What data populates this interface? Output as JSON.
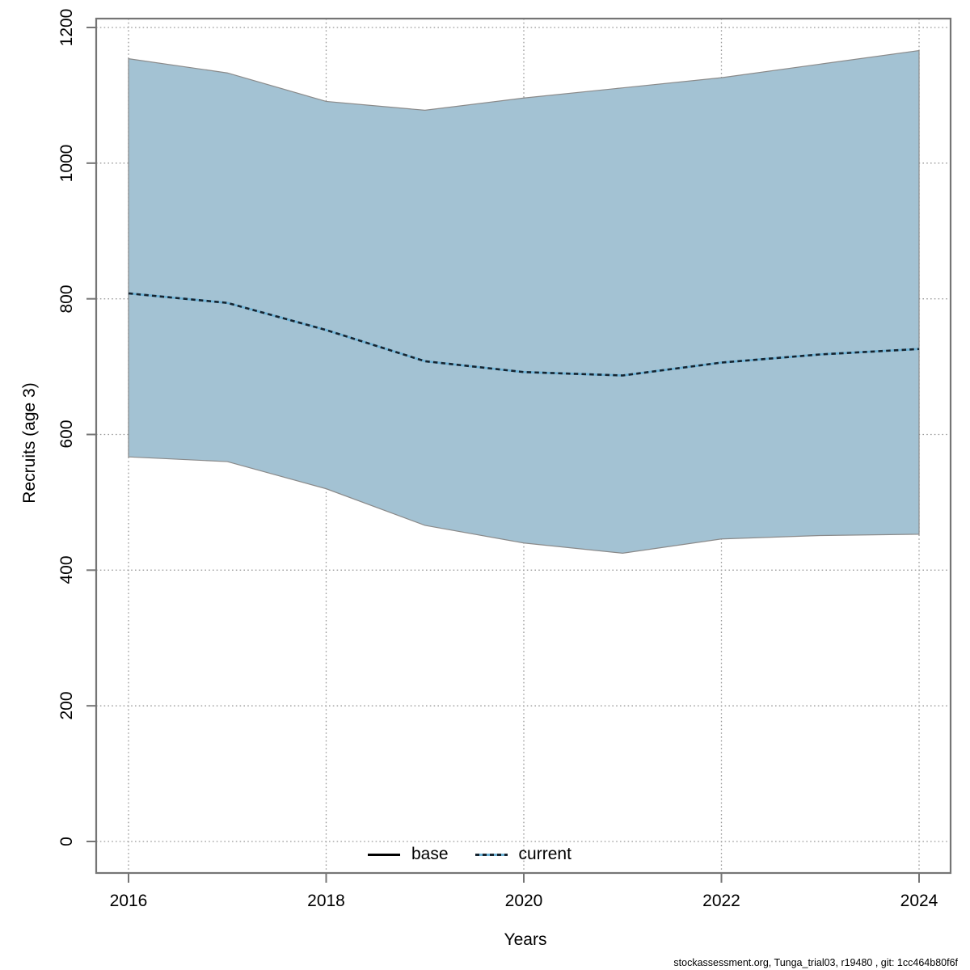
{
  "figure": {
    "footer": "stockassessment.org, Tunga_trial03, r19480 , git: 1cc464b80f6f"
  },
  "legend": {
    "position": "bottom-center",
    "items": [
      {
        "label": "base",
        "line_style": "solid",
        "color": "#000000"
      },
      {
        "label": "current",
        "line_style": "dotted",
        "dash_color": "#16242f",
        "base_color": "#6fb3d6"
      }
    ]
  },
  "chart_data": {
    "type": "area",
    "title": "",
    "xlabel": "Years",
    "ylabel": "Recruits (age 3)",
    "x": [
      2016,
      2017,
      2018,
      2019,
      2020,
      2021,
      2022,
      2023,
      2024
    ],
    "xticks": [
      2016,
      2018,
      2020,
      2022,
      2024
    ],
    "xtick_labels": [
      "2016",
      "2018",
      "2020",
      "2022",
      "2024"
    ],
    "yticks": [
      0,
      200,
      400,
      600,
      800,
      1000,
      1200
    ],
    "ytick_labels": [
      "0",
      "200",
      "400",
      "600",
      "800",
      "1000",
      "1200"
    ],
    "xlim": [
      2015.67,
      2024.33
    ],
    "ylim": [
      -47,
      1214
    ],
    "grid": true,
    "grid_style": "dotted",
    "band_fill_color": "#a3c2d3",
    "band_edge_color": "#8a8a8a",
    "axis_color": "#757575",
    "grid_color": "#999999",
    "series": [
      {
        "name": "current",
        "type": "line",
        "style": "dotted",
        "dash_color": "#16242f",
        "base_color": "#6fb3d6",
        "values": [
          808,
          794,
          754,
          708,
          692,
          687,
          706,
          718,
          726
        ]
      },
      {
        "name": "ci_upper",
        "type": "band-upper",
        "values": [
          1154,
          1133,
          1091,
          1078,
          1096,
          1111,
          1126,
          1146,
          1166
        ]
      },
      {
        "name": "ci_lower",
        "type": "band-lower",
        "values": [
          567,
          560,
          520,
          466,
          440,
          425,
          446,
          451,
          453
        ]
      }
    ]
  }
}
